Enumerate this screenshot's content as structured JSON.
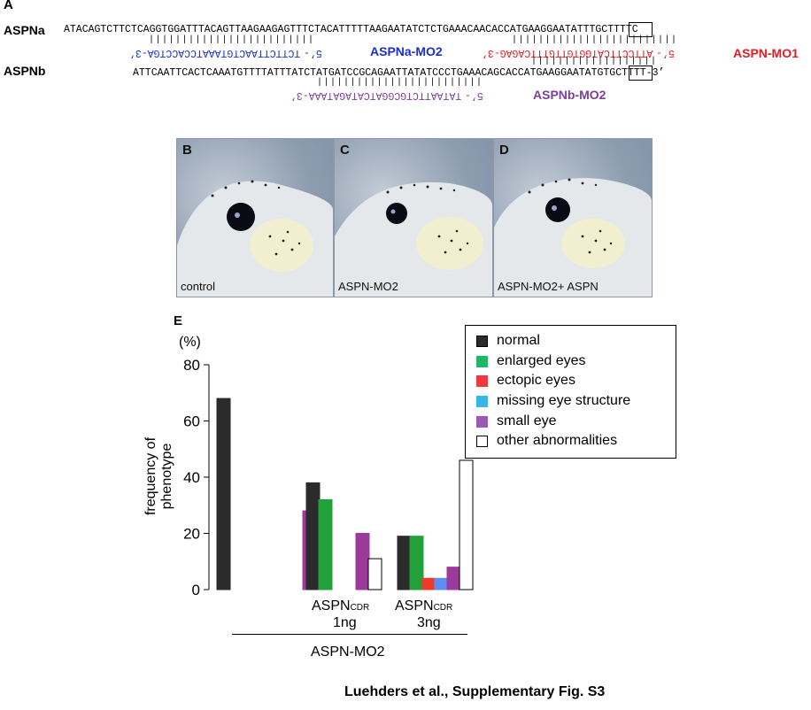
{
  "panel_a": {
    "label": "A",
    "aspna_label": "ASPNa",
    "aspna_seq": "ATACAGTCTTCTCAGGTGGATTTACAGTTAAGAAGAGTTTCTACATTTTTAAGAATATCTCTGAAACAACACCATGAAGGAATATTTGCTTTTC",
    "mo2_seq": "TCTTCTTAACTGTAAATCCACCTGA-3’",
    "mo2_prime": "5’-",
    "mo2_label": "ASPNa-MO2",
    "mo1_seq": "ATTCCTTCATGGTGTTGTTTCAGAG-3’",
    "mo1_prime": "5’-",
    "mo1_label": "ASPN-MO1",
    "aspnb_label": "ASPNb",
    "aspnb_seq": "ATTCAATTCACTCAAATGTTTTATTTATCTATGATCCGCAGAATTATATCCCTGAAACAGCACCATGAAGGAATATGTGCTTTT-3’",
    "mob_seq": "TATAATTCTGCGGATCATAGATAAA-3’",
    "mob_prime": "5’-",
    "mob_label": "ASPNb-MO2",
    "colors": {
      "mo2": "#1a2fd0",
      "mo1": "#e31b23",
      "mob": "#7b3f9a"
    }
  },
  "panels": [
    {
      "letter": "B",
      "caption": "control"
    },
    {
      "letter": "C",
      "caption": "ASPN-MO2"
    },
    {
      "letter": "D",
      "caption": "ASPN-MO2+ ASPN"
    }
  ],
  "panel_e": {
    "label": "E",
    "unit": "(%)",
    "ylabel": "frequency of phenotype",
    "group_label_1_main": "ASPN",
    "group_label_1_sub": "CDR",
    "group_label_1_dose": "1ng",
    "group_label_2_main": "ASPN",
    "group_label_2_sub": "CDR",
    "group_label_2_dose": "3ng",
    "bracket_label": "ASPN-MO2"
  },
  "chart_data": {
    "type": "bar",
    "ylim": [
      0,
      80
    ],
    "yticks": [
      0,
      20,
      40,
      60,
      80
    ],
    "grid": false,
    "legend_position": "top-right",
    "groups": [
      "",
      "",
      "ASPN CDR 1ng",
      "ASPN CDR 3ng"
    ],
    "series": [
      {
        "name": "normal",
        "color": "#2b2b2b",
        "values": [
          68,
          0,
          38,
          19
        ]
      },
      {
        "name": "enlarged eyes",
        "color": "#22a03a",
        "values": [
          0,
          0,
          32,
          19
        ]
      },
      {
        "name": "ectopic eyes",
        "color": "#ef3a2b",
        "values": [
          0,
          0,
          0,
          4
        ]
      },
      {
        "name": "missing eye structure",
        "color": "#5b8ff0",
        "values": [
          0,
          0,
          0,
          4
        ]
      },
      {
        "name": "small eye",
        "color": "#9b3a9b",
        "values": [
          0,
          28,
          20,
          8
        ]
      },
      {
        "name": "other abnormalities",
        "color": "#ffffff",
        "values": [
          0,
          4,
          11,
          46
        ]
      }
    ]
  },
  "legend": {
    "items": [
      {
        "label": "normal",
        "color": "#2b2b2b"
      },
      {
        "label": "enlarged eyes",
        "color": "#22a03a"
      },
      {
        "label": "ectopic eyes",
        "color": "#ef3a2b"
      },
      {
        "label": "missing eye structure",
        "color": "#39b6e8"
      },
      {
        "label": "small eye",
        "color": "#9b59b6"
      },
      {
        "label": "other abnormalities",
        "color": "#ffffff"
      }
    ]
  },
  "footer": "Luehders et al., Supplementary Fig. S3"
}
